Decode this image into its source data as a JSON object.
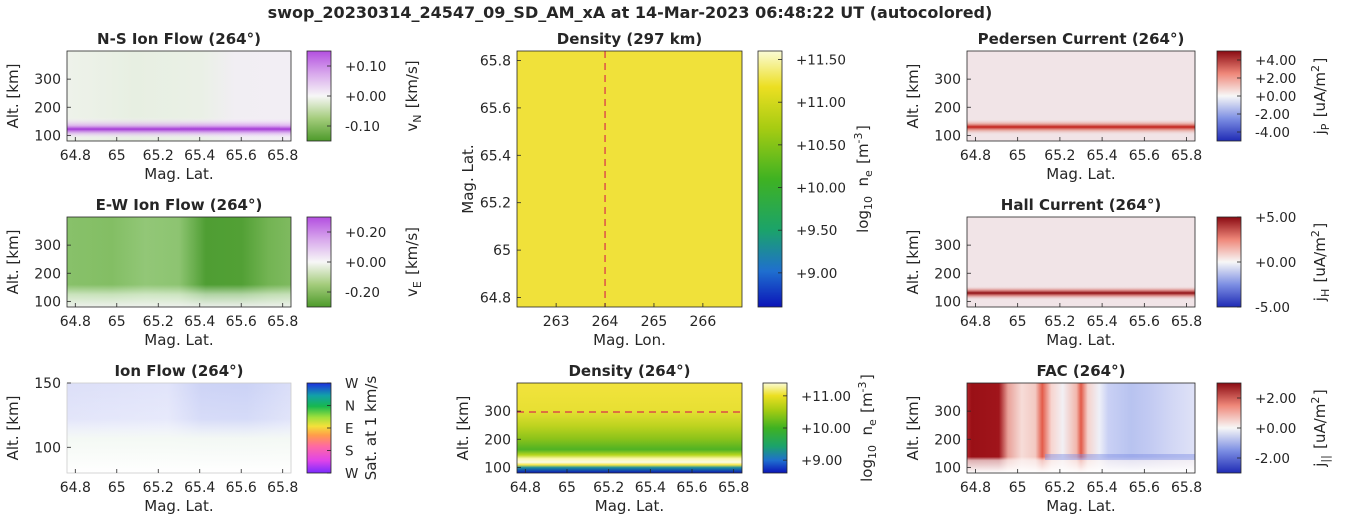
{
  "suptitle": "swop_20230314_24547_09_SD_AM_xA at 14-Mar-2023 06:48:22 UT (autocolored)",
  "chart_data": [
    {
      "id": "ns_flow",
      "type": "heatmap",
      "title": "N-S Ion Flow (264°)",
      "xlabel": "Mag. Lat.",
      "ylabel": "Alt. [km]",
      "xticks": [
        "64.8",
        "65",
        "65.2",
        "65.4",
        "65.6",
        "65.8"
      ],
      "xtick_values": [
        64.8,
        65.0,
        65.2,
        65.4,
        65.6,
        65.8
      ],
      "xlim": [
        64.76,
        65.84
      ],
      "yticks": [
        "100",
        "200",
        "300"
      ],
      "ytick_values": [
        100,
        200,
        300
      ],
      "ylim": [
        80,
        400
      ],
      "colorbar": {
        "label": "v_N [km/s]",
        "ticks": [
          "+0.10",
          "+0.00",
          "-0.10"
        ],
        "tick_values": [
          0.1,
          0.0,
          -0.1
        ],
        "range": [
          -0.15,
          0.15
        ],
        "colormap": "green-white-purple"
      }
    },
    {
      "id": "ew_flow",
      "type": "heatmap",
      "title": "E-W Ion Flow (264°)",
      "xlabel": "Mag. Lat.",
      "ylabel": "Alt. [km]",
      "xticks": [
        "64.8",
        "65",
        "65.2",
        "65.4",
        "65.6",
        "65.8"
      ],
      "xtick_values": [
        64.8,
        65.0,
        65.2,
        65.4,
        65.6,
        65.8
      ],
      "xlim": [
        64.76,
        65.84
      ],
      "yticks": [
        "100",
        "200",
        "300"
      ],
      "ytick_values": [
        100,
        200,
        300
      ],
      "ylim": [
        80,
        400
      ],
      "colorbar": {
        "label": "v_E [km/s]",
        "ticks": [
          "+0.20",
          "+0.00",
          "-0.20"
        ],
        "tick_values": [
          0.2,
          0.0,
          -0.2
        ],
        "range": [
          -0.3,
          0.3
        ],
        "colormap": "green-white-purple"
      }
    },
    {
      "id": "ion_flow",
      "type": "heatmap",
      "title": "Ion Flow (264°)",
      "xlabel": "Mag. Lat.",
      "ylabel": "Alt. [km]",
      "xticks": [
        "64.8",
        "65",
        "65.2",
        "65.4",
        "65.6",
        "65.8"
      ],
      "xtick_values": [
        64.8,
        65.0,
        65.2,
        65.4,
        65.6,
        65.8
      ],
      "xlim": [
        64.76,
        65.84
      ],
      "yticks": [
        "100",
        "150"
      ],
      "ytick_values": [
        100,
        150
      ],
      "ylim": [
        80,
        150
      ],
      "colorbar": {
        "label": "Sat. at 1 km/s",
        "ticks": [
          "W",
          "N",
          "E",
          "S",
          "W"
        ],
        "colormap": "direction-wheel"
      }
    },
    {
      "id": "density_map",
      "type": "heatmap",
      "title": "Density (297 km)",
      "xlabel": "Mag. Lon.",
      "ylabel": "Mag. Lat.",
      "xticks": [
        "263",
        "264",
        "265",
        "266"
      ],
      "xtick_values": [
        263,
        264,
        265,
        266
      ],
      "xlim": [
        262.2,
        266.8
      ],
      "yticks": [
        "64.8",
        "65",
        "65.2",
        "65.4",
        "65.6",
        "65.8"
      ],
      "ytick_values": [
        64.8,
        65.0,
        65.2,
        65.4,
        65.6,
        65.8
      ],
      "ylim": [
        64.76,
        65.84
      ],
      "reference_line": {
        "axis": "x",
        "value": 264,
        "style": "dashed",
        "color": "#d9304a"
      },
      "colorbar": {
        "label": "log10 n_e [m^-3]",
        "ticks": [
          "+11.50",
          "+11.00",
          "+10.50",
          "+10.00",
          "+9.50",
          "+9.00"
        ],
        "tick_values": [
          11.5,
          11.0,
          10.5,
          10.0,
          9.5,
          9.0
        ],
        "range": [
          8.6,
          11.6
        ],
        "colormap": "blue-green-yellow"
      },
      "value": 11.2
    },
    {
      "id": "density_profile",
      "type": "heatmap",
      "title": "Density (264°)",
      "xlabel": "Mag. Lat.",
      "ylabel": "Alt. [km]",
      "xticks": [
        "64.8",
        "65",
        "65.2",
        "65.4",
        "65.6",
        "65.8"
      ],
      "xtick_values": [
        64.8,
        65.0,
        65.2,
        65.4,
        65.6,
        65.8
      ],
      "xlim": [
        64.76,
        65.84
      ],
      "yticks": [
        "100",
        "200",
        "300"
      ],
      "ytick_values": [
        100,
        200,
        300
      ],
      "ylim": [
        80,
        400
      ],
      "reference_line": {
        "axis": "y",
        "value": 297,
        "style": "dashed",
        "color": "#d9304a"
      },
      "colorbar": {
        "label": "log10 n_e [m^-3]",
        "ticks": [
          "+11.00",
          "+10.00",
          "+9.00"
        ],
        "tick_values": [
          11.0,
          10.0,
          9.0
        ],
        "range": [
          8.6,
          11.4
        ],
        "colormap": "blue-green-yellow"
      }
    },
    {
      "id": "pedersen",
      "type": "heatmap",
      "title": "Pedersen Current (264°)",
      "xlabel": "Mag. Lat.",
      "ylabel": "Alt. [km]",
      "xticks": [
        "64.8",
        "65",
        "65.2",
        "65.4",
        "65.6",
        "65.8"
      ],
      "xtick_values": [
        64.8,
        65.0,
        65.2,
        65.4,
        65.6,
        65.8
      ],
      "xlim": [
        64.76,
        65.84
      ],
      "yticks": [
        "100",
        "200",
        "300"
      ],
      "ytick_values": [
        100,
        200,
        300
      ],
      "ylim": [
        80,
        400
      ],
      "colorbar": {
        "label": "j_P [uA/m^2]",
        "ticks": [
          "+4.00",
          "+2.00",
          "+0.00",
          "-2.00",
          "-4.00"
        ],
        "tick_values": [
          4,
          2,
          0,
          -2,
          -4
        ],
        "range": [
          -5,
          5
        ],
        "colormap": "blue-white-red"
      }
    },
    {
      "id": "hall",
      "type": "heatmap",
      "title": "Hall Current (264°)",
      "xlabel": "Mag. Lat.",
      "ylabel": "Alt. [km]",
      "xticks": [
        "64.8",
        "65",
        "65.2",
        "65.4",
        "65.6",
        "65.8"
      ],
      "xtick_values": [
        64.8,
        65.0,
        65.2,
        65.4,
        65.6,
        65.8
      ],
      "xlim": [
        64.76,
        65.84
      ],
      "yticks": [
        "100",
        "200",
        "300"
      ],
      "ytick_values": [
        100,
        200,
        300
      ],
      "ylim": [
        80,
        400
      ],
      "colorbar": {
        "label": "j_H [uA/m^2]",
        "ticks": [
          "+5.00",
          "+0.00",
          "-5.00"
        ],
        "tick_values": [
          5,
          0,
          -5
        ],
        "range": [
          -5,
          5
        ],
        "colormap": "blue-white-red"
      }
    },
    {
      "id": "fac",
      "type": "heatmap",
      "title": "FAC (264°)",
      "xlabel": "Mag. Lat.",
      "ylabel": "Alt. [km]",
      "xticks": [
        "64.8",
        "65",
        "65.2",
        "65.4",
        "65.6",
        "65.8"
      ],
      "xtick_values": [
        64.8,
        65.0,
        65.2,
        65.4,
        65.6,
        65.8
      ],
      "xlim": [
        64.76,
        65.84
      ],
      "yticks": [
        "100",
        "200",
        "300"
      ],
      "ytick_values": [
        100,
        200,
        300
      ],
      "ylim": [
        80,
        400
      ],
      "colorbar": {
        "label": "j_|| [uA/m^2]",
        "ticks": [
          "+2.00",
          "+0.00",
          "-2.00"
        ],
        "tick_values": [
          2,
          0,
          -2
        ],
        "range": [
          -3,
          3
        ],
        "colormap": "blue-white-red"
      }
    }
  ]
}
